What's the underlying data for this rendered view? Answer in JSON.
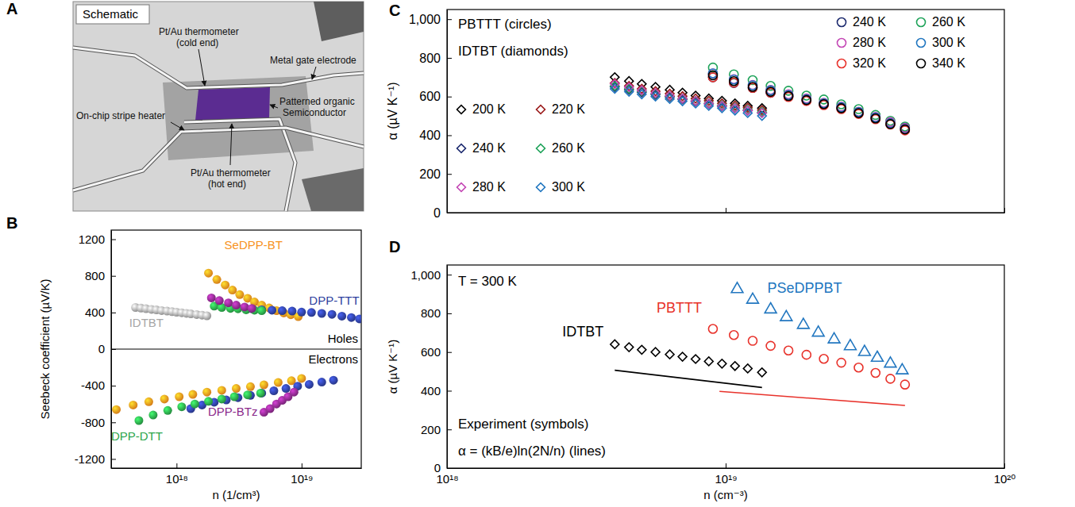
{
  "schematic": {
    "panel": "A",
    "title": "Schematic",
    "labels": [
      [
        "Pt/Au thermometer",
        "(cold end)"
      ],
      [
        "Metal gate electrode"
      ],
      [
        "Patterned organic",
        "Semiconductor"
      ],
      [
        "On-chip stripe heater"
      ],
      [
        "Pt/Au thermometer",
        "(hot end)"
      ]
    ]
  },
  "chart_data": [
    {
      "panel": "B",
      "type": "scatter",
      "x_label": "n (1/cm³)",
      "y_label": "Seebeck coefficient (µV/K)",
      "log": "x",
      "xlim": [
        3e+17,
        3e+19
      ],
      "xticks": [
        {
          "value": 1e+18,
          "label": "10¹⁸"
        },
        {
          "value": 1e+19,
          "label": "10¹⁹"
        }
      ],
      "ylim": [
        -1300,
        1300
      ],
      "yticks": [
        -1200,
        -800,
        -400,
        0,
        400,
        800,
        1200
      ],
      "annotations": [
        "Holes",
        "Electrons"
      ],
      "series": [
        {
          "name": "IDTBT",
          "color": "#a6a6a6",
          "marker": "sphere",
          "x": [
            4.7e+17,
            5.2e+17,
            5.7e+17,
            6.3e+17,
            6.9e+17,
            7.6e+17,
            8.4e+17,
            9.2e+17,
            1e+18,
            1.1e+18,
            1.2e+18,
            1.3e+18,
            1.45e+18,
            1.6e+18,
            1.75e+18
          ],
          "values": [
            455,
            448,
            441,
            434,
            428,
            421,
            415,
            409,
            403,
            397,
            391,
            385,
            378,
            371,
            364
          ]
        },
        {
          "name": "SeDPP-BT",
          "color": "#f7931e",
          "marker": "sphere",
          "x": [
            1.8e+18,
            2.1e+18,
            2.45e+18,
            2.8e+18,
            3.2e+18,
            3.7e+18,
            4.2e+18,
            4.8e+18,
            5.5e+18,
            6.3e+18,
            7.2e+18,
            8.2e+18,
            9.4e+18,
            3.3e+17,
            4.5e+17,
            6e+17,
            8e+17,
            1.05e+18,
            1.35e+18,
            1.75e+18,
            2.3e+18,
            3e+18,
            3.9e+18,
            5e+18,
            6.5e+18,
            8.3e+18,
            1e+19
          ],
          "values": [
            830,
            760,
            700,
            645,
            595,
            555,
            515,
            480,
            450,
            420,
            395,
            375,
            355,
            -660,
            -610,
            -575,
            -545,
            -520,
            -495,
            -470,
            -450,
            -430,
            -410,
            -390,
            -365,
            -345,
            -320
          ]
        },
        {
          "name": "DPP-TTT",
          "color": "#2e3f9e",
          "marker": "sphere",
          "x": [
            4e+18,
            4.8e+18,
            5.8e+18,
            7e+18,
            8.4e+18,
            1e+19,
            1.2e+19,
            1.45e+19,
            1.75e+19,
            2.1e+19,
            2.5e+19,
            2.9e+19,
            1.3e+18,
            1.6e+18,
            2e+18,
            2.5e+18,
            3.1e+18,
            3.9e+18,
            4.8e+18,
            6e+18,
            7.5e+18,
            9.3e+18,
            1.15e+19,
            1.45e+19,
            1.8e+19
          ],
          "values": [
            440,
            430,
            425,
            420,
            415,
            405,
            400,
            390,
            380,
            360,
            345,
            330,
            -650,
            -610,
            -580,
            -555,
            -530,
            -505,
            -480,
            -455,
            -430,
            -405,
            -385,
            -360,
            -340
          ]
        },
        {
          "name": "DPP-DTT",
          "color": "#2ca54a",
          "marker": "sphere",
          "x": [
            2e+18,
            2.3e+18,
            2.7e+18,
            3.1e+18,
            3.6e+18,
            4.2e+18,
            4.8e+18,
            5e+17,
            6.5e+17,
            8.5e+17,
            1.1e+18,
            1.4e+18,
            1.8e+18,
            2.3e+18,
            2.9e+18,
            3.7e+18,
            4.7e+18
          ],
          "values": [
            470,
            455,
            445,
            440,
            430,
            425,
            420,
            -780,
            -720,
            -670,
            -630,
            -600,
            -570,
            -545,
            -520,
            -500,
            -480
          ]
        },
        {
          "name": "DPP-BTz",
          "color": "#8b2a8b",
          "marker": "sphere",
          "x": [
            1.9e+18,
            2.2e+18,
            2.6e+18,
            3e+18,
            3.5e+18,
            4e+18,
            5e+18,
            5.6e+18,
            6.3e+18,
            7e+18,
            7.8e+18,
            8.7e+18
          ],
          "values": [
            560,
            530,
            505,
            480,
            460,
            445,
            -690,
            -650,
            -600,
            -560,
            -520,
            -470
          ]
        }
      ]
    },
    {
      "panel": "C",
      "type": "scatter",
      "y_label": "α (µV K⁻¹)",
      "log": "x",
      "xlim": [
        1e+18,
        1e+20
      ],
      "xticks": [
        1e+18,
        1e+19,
        1e+20
      ],
      "tick_labels": "y",
      "ylim": [
        0,
        1050
      ],
      "yticks": [
        0,
        200,
        400,
        600,
        800,
        {
          "value": 1000,
          "label": "1,000"
        }
      ],
      "legend": "top-right",
      "annotations": [
        "PBTTT (circles)",
        "IDTBT (diamonds)"
      ],
      "series": [
        {
          "name": "200 K",
          "color": "#000000",
          "marker": "diamond",
          "x": [
            4e+18,
            4.5e+18,
            5e+18,
            5.6e+18,
            6.3e+18,
            7e+18,
            7.8e+18,
            8.7e+18,
            9.7e+18,
            1.08e+19,
            1.2e+19,
            1.35e+19
          ],
          "values": [
            700,
            680,
            665,
            650,
            635,
            620,
            605,
            590,
            578,
            565,
            552,
            540
          ]
        },
        {
          "name": "220 K",
          "color": "#9b1b1b",
          "marker": "diamond",
          "x": [
            4e+18,
            4.5e+18,
            5e+18,
            5.6e+18,
            6.3e+18,
            7e+18,
            7.8e+18,
            8.7e+18,
            9.7e+18,
            1.08e+19,
            1.2e+19,
            1.35e+19
          ],
          "values": [
            670,
            655,
            640,
            628,
            615,
            602,
            590,
            578,
            565,
            553,
            542,
            530
          ]
        },
        {
          "name": "240 K",
          "color": "#1c2a6e",
          "marker": "diamond",
          "x": [
            4e+18,
            4.5e+18,
            5e+18,
            5.6e+18,
            6.3e+18,
            7e+18,
            7.8e+18,
            8.7e+18,
            9.7e+18,
            1.08e+19,
            1.2e+19,
            1.35e+19
          ],
          "values": [
            650,
            635,
            622,
            610,
            598,
            586,
            574,
            562,
            550,
            540,
            528,
            516
          ]
        },
        {
          "name": "260 K",
          "color": "#1fa35a",
          "marker": "diamond",
          "x": [
            4e+18,
            4.5e+18,
            5e+18,
            5.6e+18,
            6.3e+18,
            7e+18,
            7.8e+18,
            8.7e+18,
            9.7e+18,
            1.08e+19,
            1.2e+19,
            1.35e+19
          ],
          "values": [
            655,
            640,
            628,
            615,
            602,
            590,
            578,
            566,
            555,
            543,
            532,
            520
          ]
        },
        {
          "name": "280 K",
          "color": "#c447b5",
          "marker": "diamond",
          "x": [
            4e+18,
            4.5e+18,
            5e+18,
            5.6e+18,
            6.3e+18,
            7e+18,
            7.8e+18,
            8.7e+18,
            9.7e+18,
            1.08e+19,
            1.2e+19,
            1.35e+19
          ],
          "values": [
            665,
            648,
            632,
            618,
            604,
            590,
            577,
            564,
            552,
            540,
            528,
            515
          ]
        },
        {
          "name": "300 K",
          "color": "#2277c0",
          "marker": "diamond",
          "x": [
            4e+18,
            4.5e+18,
            5e+18,
            5.6e+18,
            6.3e+18,
            7e+18,
            7.8e+18,
            8.7e+18,
            9.7e+18,
            1.08e+19,
            1.2e+19,
            1.35e+19
          ],
          "values": [
            640,
            625,
            612,
            600,
            588,
            576,
            564,
            552,
            540,
            528,
            515,
            500
          ]
        },
        {
          "name": "240 K",
          "color": "#1c2a6e",
          "marker": "circle",
          "x": [
            9e+18,
            1.07e+19,
            1.25e+19,
            1.45e+19,
            1.68e+19,
            1.95e+19,
            2.25e+19,
            2.6e+19,
            3e+19,
            3.45e+19,
            3.9e+19,
            4.4e+19
          ],
          "values": [
            700,
            670,
            645,
            620,
            600,
            580,
            560,
            540,
            515,
            490,
            465,
            440
          ]
        },
        {
          "name": "260 K",
          "color": "#1fa35a",
          "marker": "circle",
          "x": [
            9e+18,
            1.07e+19,
            1.25e+19,
            1.45e+19,
            1.68e+19,
            1.95e+19,
            2.25e+19,
            2.6e+19,
            3e+19,
            3.45e+19,
            3.9e+19,
            4.4e+19
          ],
          "values": [
            750,
            715,
            685,
            655,
            630,
            605,
            585,
            560,
            535,
            505,
            475,
            445
          ]
        },
        {
          "name": "280 K",
          "color": "#c447b5",
          "marker": "circle",
          "x": [
            9e+18,
            1.07e+19,
            1.25e+19,
            1.45e+19,
            1.68e+19,
            1.95e+19,
            2.25e+19,
            2.6e+19,
            3e+19,
            3.45e+19,
            3.9e+19,
            4.4e+19
          ],
          "values": [
            720,
            690,
            660,
            635,
            612,
            590,
            568,
            548,
            522,
            495,
            468,
            438
          ]
        },
        {
          "name": "300 K",
          "color": "#2277c0",
          "marker": "circle",
          "x": [
            9e+18,
            1.07e+19,
            1.25e+19,
            1.45e+19,
            1.68e+19,
            1.95e+19,
            2.25e+19,
            2.6e+19,
            3e+19,
            3.45e+19,
            3.9e+19,
            4.4e+19
          ],
          "values": [
            720,
            688,
            658,
            632,
            608,
            586,
            565,
            545,
            520,
            492,
            462,
            432
          ]
        },
        {
          "name": "320 K",
          "color": "#e8322b",
          "marker": "circle",
          "x": [
            9e+18,
            1.07e+19,
            1.25e+19,
            1.45e+19,
            1.68e+19,
            1.95e+19,
            2.25e+19,
            2.6e+19,
            3e+19,
            3.45e+19,
            3.9e+19,
            4.4e+19
          ],
          "values": [
            700,
            672,
            645,
            620,
            598,
            577,
            556,
            535,
            510,
            483,
            455,
            425
          ]
        },
        {
          "name": "340 K",
          "color": "#000000",
          "marker": "circle",
          "x": [
            9e+18,
            1.07e+19,
            1.25e+19,
            1.45e+19,
            1.68e+19,
            1.95e+19,
            2.25e+19,
            2.6e+19,
            3e+19,
            3.45e+19,
            3.9e+19,
            4.4e+19
          ],
          "values": [
            710,
            680,
            650,
            625,
            603,
            582,
            561,
            540,
            515,
            487,
            458,
            430
          ]
        }
      ]
    },
    {
      "panel": "D",
      "type": "scatter",
      "x_label": "n (cm⁻³)",
      "y_label": "α (µV K⁻¹)",
      "log": "x",
      "xlim": [
        1e+18,
        1e+20
      ],
      "xticks": [
        {
          "value": 1e+18,
          "label": "10¹⁸"
        },
        {
          "value": 1e+19,
          "label": "10¹⁹"
        },
        {
          "value": 1e+20,
          "label": "10²⁰"
        }
      ],
      "ylim": [
        0,
        1050
      ],
      "yticks": [
        0,
        200,
        400,
        600,
        800,
        {
          "value": 1000,
          "label": "1,000"
        }
      ],
      "annotations": [
        "T = 300 K",
        "Experiment (symbols)",
        "α = (kB/e)ln(2N/n) (lines)"
      ],
      "series": [
        {
          "name": "IDTBT",
          "color": "#000000",
          "marker": "diamond",
          "x": [
            4e+18,
            4.5e+18,
            5e+18,
            5.6e+18,
            6.3e+18,
            7e+18,
            7.8e+18,
            8.7e+18,
            9.7e+18,
            1.08e+19,
            1.2e+19,
            1.35e+19
          ],
          "values": [
            640,
            625,
            612,
            600,
            588,
            576,
            564,
            552,
            540,
            528,
            515,
            495
          ]
        },
        {
          "name": "PBTTT",
          "color": "#e8322b",
          "marker": "circle",
          "x": [
            9e+18,
            1.07e+19,
            1.25e+19,
            1.45e+19,
            1.68e+19,
            1.95e+19,
            2.25e+19,
            2.6e+19,
            3e+19,
            3.45e+19,
            3.9e+19,
            4.4e+19
          ],
          "values": [
            720,
            688,
            658,
            632,
            608,
            586,
            565,
            545,
            520,
            492,
            462,
            432
          ]
        },
        {
          "name": "PSeDPPBT",
          "color": "#2277c0",
          "marker": "triangle",
          "x": [
            1.1e+19,
            1.25e+19,
            1.45e+19,
            1.65e+19,
            1.9e+19,
            2.15e+19,
            2.45e+19,
            2.8e+19,
            3.15e+19,
            3.5e+19,
            3.9e+19,
            4.3e+19
          ],
          "values": [
            925,
            870,
            820,
            780,
            740,
            700,
            665,
            630,
            600,
            570,
            540,
            505
          ]
        },
        {
          "type": "line",
          "color": "#000000",
          "x": [
            4e+18,
            1.35e+19
          ],
          "values": [
            506,
            417
          ]
        },
        {
          "type": "line",
          "color": "#e8322b",
          "x": [
            9.5e+18,
            4.4e+19
          ],
          "values": [
            397,
            324
          ]
        }
      ]
    }
  ]
}
